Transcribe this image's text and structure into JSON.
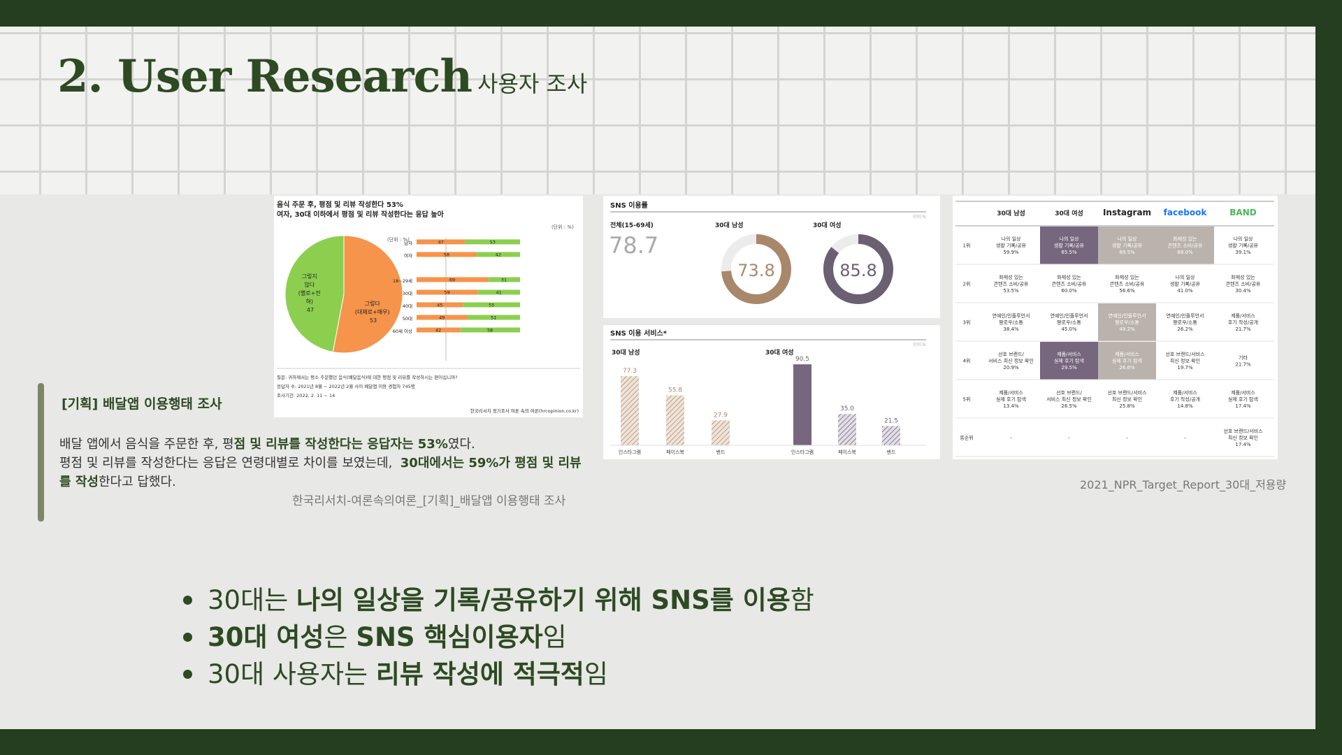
{
  "title": {
    "main": "2. User Research",
    "sub": "사용자 조사"
  },
  "survey_card": {
    "headline1": "음식 주문 후, 평점 및 리뷰 작성한다 53%",
    "headline2": "여자, 30대 이하에서 평점 및 리뷰 작성한다는 응답 높아",
    "unit": "(단위 : %)",
    "unit2": "(단위 : %)",
    "pie_no_lines": [
      "그렇지",
      "않다",
      "(별로+전",
      "혀)",
      "47"
    ],
    "pie_yes_lines": [
      "그렇다",
      "(대체로+매우)",
      "53"
    ],
    "question": "질문: 귀하께서는 평소 주문했던 음식(배달음식)에 대한 평점 및 리뷰를 작성하시는 편이십니까?",
    "respondents": "응답자 수: 2021년 8월 ~ 2022년 2월 사이 배달앱 이용 경험자 745명",
    "period": "조사기간: 2022. 2. 11 ~ 14",
    "credit": "한국리서치 정기조사 여론 속의 여론(hrcopinion.co.kr)"
  },
  "sns_rate_card": {
    "title": "SNS 이용률",
    "unit": "단위:%",
    "total_label": "전체(15-69세)",
    "total_value": "78.7",
    "male_label": "30대 남성",
    "male_value": "73.8",
    "female_label": "30대 여성",
    "female_value": "85.8"
  },
  "sns_service_card": {
    "title": "SNS 이용 서비스*",
    "unit": "단위:%",
    "male_group": "30대 남성",
    "female_group": "30대 여성",
    "male_values": [
      "77.3",
      "55.8",
      "27.9"
    ],
    "female_values": [
      "90.5",
      "35.0",
      "21.5"
    ],
    "labels": [
      "인스타그램",
      "페이스북",
      "밴드"
    ]
  },
  "rank_table": {
    "headers": [
      "30대 남성",
      "30대 여성",
      "Instagram",
      "facebook",
      "BAND"
    ],
    "rows": [
      {
        "rank": "1위",
        "cells": [
          [
            "나의 일상",
            "생활 기록/공유",
            "59.9%"
          ],
          [
            "나의 일상",
            "생활 기록/공유",
            "65.5%"
          ],
          [
            "나의 일상",
            "생활 기록/공유",
            "69.5%"
          ],
          [
            "화제성 있는",
            "콘텐츠 소비/공유",
            "68.0%"
          ],
          [
            "나의 일상",
            "생활 기록/공유",
            "39.1%"
          ]
        ]
      },
      {
        "rank": "2위",
        "cells": [
          [
            "화제성 있는",
            "콘텐츠 소비/공유",
            "53.5%"
          ],
          [
            "화제성 있는",
            "콘텐츠 소비/공유",
            "60.0%"
          ],
          [
            "화제성 있는",
            "콘텐츠 소비/공유",
            "56.6%"
          ],
          [
            "나의 일상",
            "생활 기록/공유",
            "41.0%"
          ],
          [
            "화제성 있는",
            "콘텐츠 소비/공유",
            "30.4%"
          ]
        ]
      },
      {
        "rank": "3위",
        "cells": [
          [
            "연예인/인플루언서",
            "팔로우/소통",
            "38.4%"
          ],
          [
            "연예인/인플루언서",
            "팔로우/소통",
            "45.0%"
          ],
          [
            "연예인/인플루언서",
            "팔로우/소통",
            "49.2%"
          ],
          [
            "연예인/인플루언서",
            "팔로우/소통",
            "26.2%"
          ],
          [
            "제품/서비스",
            "후기 작성/공개",
            "21.7%"
          ]
        ]
      },
      {
        "rank": "4위",
        "cells": [
          [
            "선호 브랜드/",
            "서비스 최신 정보 확인",
            "20.9%"
          ],
          [
            "제품/서비스",
            "실제 후기 탐색",
            "29.5%"
          ],
          [
            "제품/서비스",
            "실제 후기 탐색",
            "26.6%"
          ],
          [
            "선호 브랜드/서비스",
            "최신 정보 확인",
            "19.7%"
          ],
          [
            "기타",
            "21.7%"
          ]
        ]
      },
      {
        "rank": "5위",
        "cells": [
          [
            "제품/서비스",
            "실제 후기 탐색",
            "13.4%"
          ],
          [
            "선호 브랜드/",
            "서비스 최신 정보 확인",
            "26.5%"
          ],
          [
            "선호 브랜드/서비스",
            "최신 정보 확인",
            "25.8%"
          ],
          [
            "제품/서비스",
            "후기 작성/공개",
            "14.8%"
          ],
          [
            "제품/서비스",
            "실제 후기 탐색",
            "17.4%"
          ]
        ]
      },
      {
        "rank": "동순위",
        "cells": [
          [
            "-"
          ],
          [
            "-"
          ],
          [
            "-"
          ],
          [
            "-"
          ],
          [
            "선호 브랜드/서비스",
            "최신 정보 확인",
            "17.4%"
          ]
        ]
      }
    ],
    "highlights": {
      "0-1": "#76667e",
      "0-2": "#bab3ad",
      "0-3": "#bab3ad",
      "2-2": "#bab3ad",
      "3-1": "#76667e",
      "3-2": "#bab3ad"
    }
  },
  "note": {
    "title": "[기획] 배달앱 이용행태 조사",
    "line1_a": "배달 앱에서 음식을 주문한 후, 평",
    "line1_b": "점 및 리뷰를 작성한다는 응답자는 53%",
    "line1_c": "였다.",
    "line2_a": "평점 및 리뷰를 작성한다는 응답은 연령대별로 차이를 보였는데,  ",
    "line2_b": "30대에서는 59%가 평점 및 리뷰",
    "line3_a": "를 작성",
    "line3_b": "한다고 답했다.",
    "source": "한국리서치-여론속의여론_[기획]_배달앱 이용행태 조사"
  },
  "source_right": "2021_NPR_Target_Report_30대_저용량",
  "bullets": [
    {
      "a": "30대는 ",
      "b": "나의 일상을 기록/공유하기 위해 SNS를 이용",
      "c": "함"
    },
    {
      "a": "",
      "b": "30대 여성",
      "c": "은 "
    },
    {
      "a": "30대 사용자는 ",
      "b": "리뷰 작성에 적극적",
      "c": "임"
    }
  ],
  "bullet2_extra": {
    "b": "SNS 핵심이용자",
    "c": "임"
  },
  "chart_data": [
    {
      "type": "pie",
      "title": "음식 주문 후, 평점 및 리뷰 작성한다 53%",
      "categories": [
        "그렇다(대체로+매우)",
        "그렇지 않다(별로+전혀)"
      ],
      "values": [
        53,
        47
      ],
      "colors": [
        "#f5944a",
        "#8ccf4f"
      ]
    },
    {
      "type": "bar",
      "stacked": true,
      "categories": [
        "남자",
        "여자",
        "18~29세",
        "30대",
        "40대",
        "50대",
        "60세 이상"
      ],
      "series": [
        {
          "name": "그렇다",
          "values": [
            47,
            58,
            69,
            59,
            45,
            49,
            42
          ]
        },
        {
          "name": "그렇지 않다",
          "values": [
            53,
            42,
            31,
            41,
            55,
            51,
            58
          ]
        }
      ]
    },
    {
      "type": "pie",
      "title": "SNS 이용률",
      "categories": [
        "30대 남성",
        "30대 여성"
      ],
      "values": [
        73.8,
        85.8
      ]
    },
    {
      "type": "bar",
      "title": "SNS 이용 서비스*",
      "categories": [
        "인스타그램",
        "페이스북",
        "밴드"
      ],
      "series": [
        {
          "name": "30대 남성",
          "values": [
            77.3,
            55.8,
            27.9
          ]
        },
        {
          "name": "30대 여성",
          "values": [
            90.5,
            35.0,
            21.5
          ]
        }
      ]
    }
  ],
  "colors": {
    "brand_green": "#243e1f",
    "title_green": "#2d4a22",
    "orange": "#f5944a",
    "light_green": "#8ccf4f",
    "brown": "#a9876a",
    "purple": "#76667e"
  }
}
